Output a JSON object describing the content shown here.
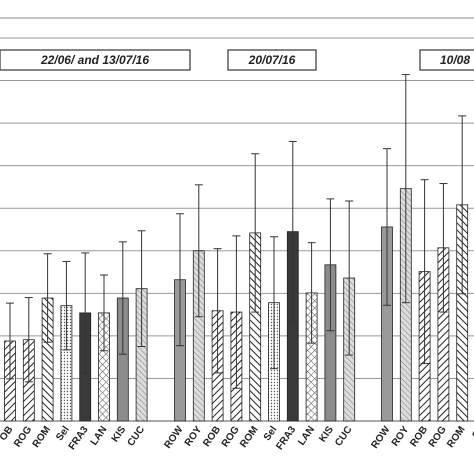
{
  "chart_data": {
    "type": "bar",
    "ylim": [
      0,
      9
    ],
    "yticks": [
      0,
      1,
      2,
      3,
      4,
      5,
      6,
      7,
      8,
      9
    ],
    "grid": true,
    "groups": [
      {
        "label": "22/06/ and 13/07/16",
        "categories": [
          "OB",
          "ROG",
          "ROM",
          "Sel",
          "FRA3",
          "LAN",
          "KIS",
          "CUC"
        ],
        "values": [
          1.88,
          1.91,
          2.89,
          2.71,
          2.54,
          2.54,
          2.89,
          3.11
        ],
        "errors": [
          0.89,
          0.99,
          1.04,
          1.04,
          1.41,
          0.89,
          1.32,
          1.36
        ],
        "fills": [
          "url(#hatchR)",
          "url(#hatchR)",
          "url(#hatchL)",
          "url(#dots)",
          "#3a3a3a",
          "url(#cross)",
          "#8c8c8c",
          "url(#hatchG)"
        ]
      },
      {
        "label": "20/07/16",
        "categories": [
          "ROW",
          "ROY",
          "ROB",
          "ROG",
          "ROM",
          "Sel",
          "FRA3",
          "LAN",
          "KIS",
          "CUC"
        ],
        "values": [
          3.32,
          4.0,
          2.59,
          2.56,
          4.42,
          2.78,
          4.45,
          3.01,
          3.67,
          3.36
        ],
        "errors": [
          1.55,
          1.55,
          1.46,
          1.79,
          1.86,
          1.55,
          2.12,
          1.18,
          1.55,
          1.81
        ],
        "fills": [
          "#9a9a9a",
          "url(#hatchG)",
          "url(#hatchR)",
          "url(#hatchR)",
          "url(#hatchL)",
          "url(#dots)",
          "#3a3a3a",
          "url(#cross)",
          "#8c8c8c",
          "url(#hatchG)"
        ]
      },
      {
        "label": "10/08",
        "categories": [
          "ROW",
          "ROY",
          "ROB",
          "ROG",
          "ROM",
          "Se"
        ],
        "values": [
          4.56,
          5.46,
          3.51,
          4.07,
          5.08,
          null
        ],
        "errors": [
          1.84,
          2.68,
          2.16,
          1.51,
          2.09,
          null
        ],
        "fills": [
          "#9a9a9a",
          "url(#hatchG)",
          "url(#hatchR)",
          "url(#hatchR)",
          "url(#hatchL)",
          "url(#dots)"
        ]
      }
    ]
  }
}
